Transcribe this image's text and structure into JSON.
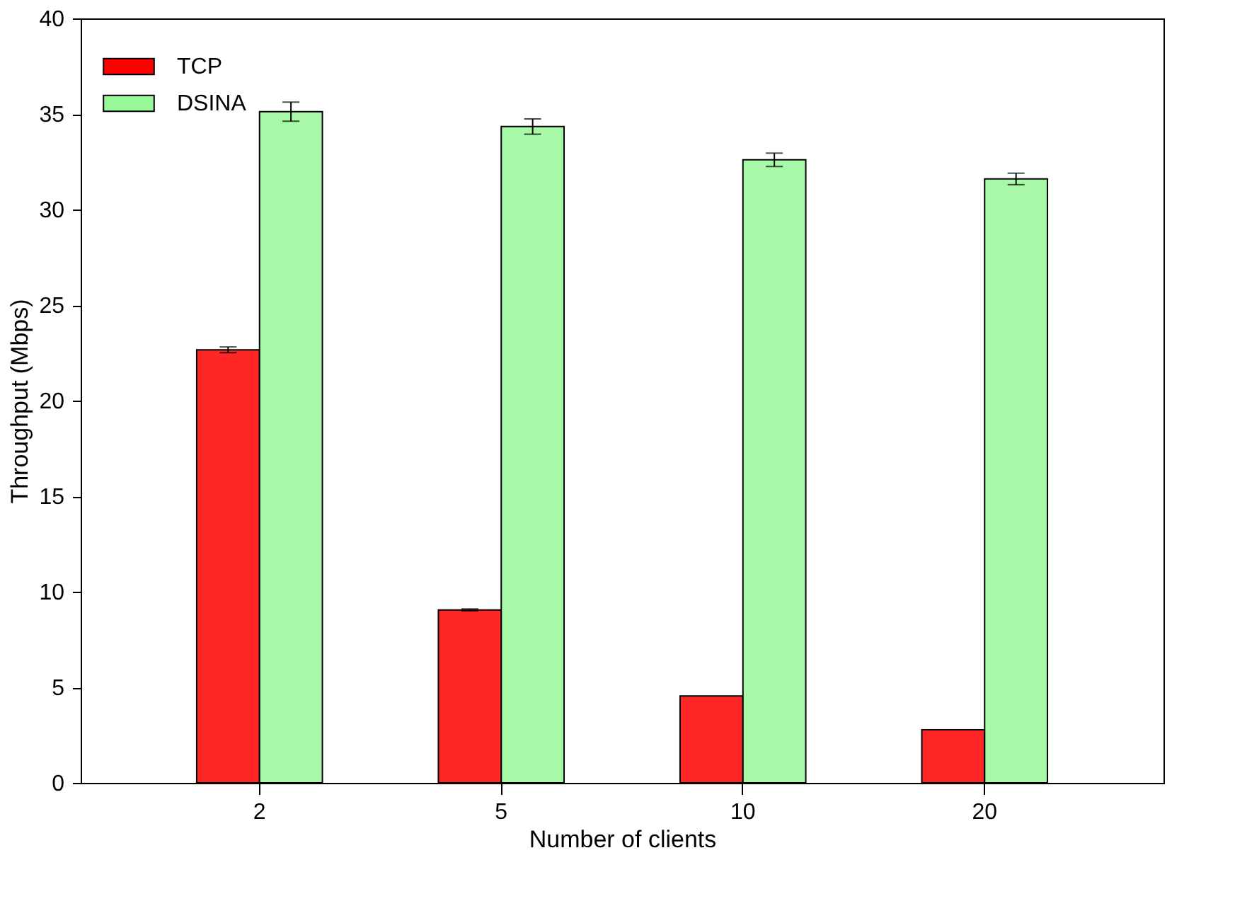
{
  "chart_data": {
    "type": "bar",
    "xlabel": "Number of clients",
    "ylabel": "Throughput (Mbps)",
    "categories": [
      "2",
      "5",
      "10",
      "20"
    ],
    "series": [
      {
        "name": "TCP",
        "color": "#ff0000",
        "values": [
          22.66,
          9.05,
          4.55,
          2.78
        ],
        "errors": [
          0.15,
          0.05,
          null,
          null
        ]
      },
      {
        "name": "DSINA",
        "color": "#98f898",
        "values": [
          35.12,
          34.34,
          32.6,
          31.6
        ],
        "errors": [
          0.5,
          0.4,
          0.35,
          0.3
        ]
      }
    ],
    "ylim": [
      0,
      40
    ],
    "yticks": [
      0,
      5,
      10,
      15,
      20,
      25,
      30,
      35,
      40
    ],
    "grid": false,
    "legend": "top left"
  }
}
